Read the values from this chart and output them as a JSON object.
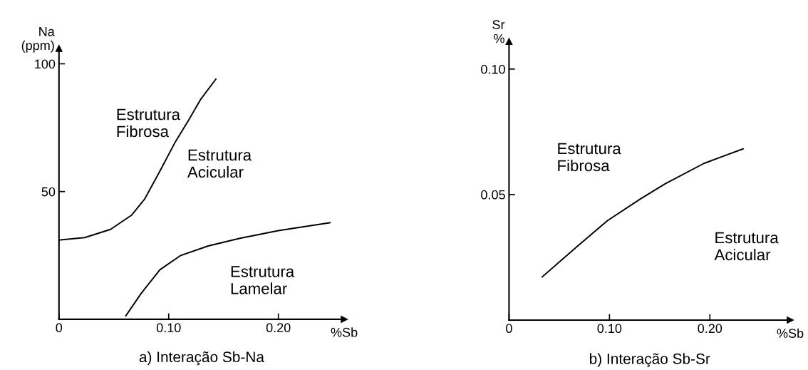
{
  "chart_data": [
    {
      "type": "line",
      "title": "a) Interação Sb-Na",
      "xlabel": "%Sb",
      "ylabel": "Na\n(ppm)",
      "xlim": [
        0,
        0.26
      ],
      "ylim": [
        0,
        106
      ],
      "xticks": [
        {
          "value": 0,
          "label": "0"
        },
        {
          "value": 0.1,
          "label": "0.10"
        },
        {
          "value": 0.2,
          "label": "0.20"
        }
      ],
      "yticks": [
        {
          "value": 0,
          "label": null
        },
        50,
        100
      ],
      "grid": false,
      "legend": false,
      "series": [
        {
          "color": "#000000",
          "x": [
            0,
            0.0235,
            0.047,
            0.066,
            0.078,
            0.092,
            0.106,
            0.118,
            0.129,
            0.143
          ],
          "values": [
            31,
            32,
            35.2,
            40.7,
            47,
            58,
            69.4,
            77.8,
            86,
            94
          ]
        },
        {
          "color": "#000000",
          "x": [
            0.061,
            0.075,
            0.092,
            0.111,
            0.136,
            0.165,
            0.2,
            0.247
          ],
          "values": [
            1.4,
            10.2,
            19.4,
            25,
            28.7,
            31.7,
            34.7,
            37.8
          ]
        }
      ],
      "annotations": [
        "Estrutura\nFibrosa",
        "Estrutura\nAcicular",
        "Estrutura\nLamelar"
      ]
    },
    {
      "type": "line",
      "title": "b) Interação Sb-Sr",
      "xlabel": "%Sb",
      "ylabel": "Sr\n%",
      "xlim": [
        0,
        0.28
      ],
      "ylim": [
        0,
        0.111
      ],
      "xticks": [
        {
          "value": 0,
          "label": "0"
        },
        {
          "value": 0.1,
          "label": "0.10"
        },
        {
          "value": 0.2,
          "label": "0.20"
        }
      ],
      "yticks": [
        0.05,
        {
          "value": 0.1,
          "label": "0.10"
        }
      ],
      "grid": false,
      "legend": false,
      "series": [
        {
          "color": "#000000",
          "x": [
            0.033,
            0.068,
            0.098,
            0.131,
            0.156,
            0.194,
            0.233
          ],
          "values": [
            0.0172,
            0.0294,
            0.0396,
            0.0483,
            0.0544,
            0.0624,
            0.0682
          ]
        }
      ],
      "annotations": [
        "Estrutura\nFibrosa",
        "Estrutura\nAcicular"
      ]
    }
  ]
}
